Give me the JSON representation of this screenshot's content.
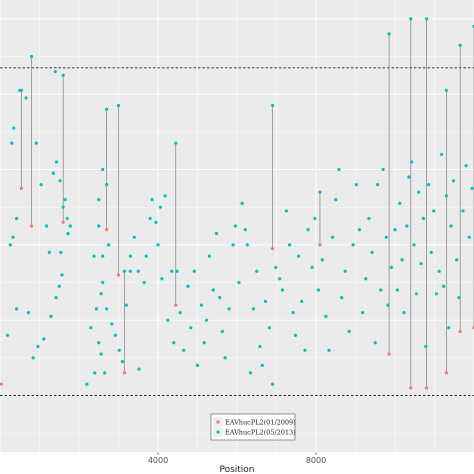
{
  "chart_data": {
    "type": "scatter",
    "xlabel": "Position",
    "ylabel": "",
    "x_ticks": [
      4000,
      8000
    ],
    "x_tick_labels": [
      "4000",
      "8000"
    ],
    "xlim": [
      0,
      12000
    ],
    "ylim": [
      -0.15,
      1.05
    ],
    "reference_lines": [
      0.0,
      0.87
    ],
    "grid": true,
    "legend_position": "bottom",
    "series": [
      {
        "name": "EAVhucPL2(01/2009)",
        "color": "#f8766d",
        "points": [
          [
            30,
            0.03
          ],
          [
            540,
            0.55
          ],
          [
            800,
            0.45
          ],
          [
            1600,
            0.46
          ],
          [
            2700,
            0.44
          ],
          [
            3000,
            0.32
          ],
          [
            3150,
            0.06
          ],
          [
            4450,
            0.24
          ],
          [
            6900,
            0.39
          ],
          [
            8100,
            0.4
          ],
          [
            9850,
            0.11
          ],
          [
            10400,
            0.02
          ],
          [
            10800,
            0.02
          ],
          [
            11300,
            0.06
          ],
          [
            11650,
            0.17
          ],
          [
            12000,
            0.18
          ]
        ]
      },
      {
        "name": "EAVhucPL2(05/2013)",
        "color": "#00bfc4",
        "points": [
          [
            500,
            0.81
          ],
          [
            540,
            0.81
          ],
          [
            660,
            0.79
          ],
          [
            800,
            0.9
          ],
          [
            1400,
            0.86
          ],
          [
            1600,
            0.85
          ],
          [
            2700,
            0.76
          ],
          [
            3000,
            0.77
          ],
          [
            3150,
            0.33
          ],
          [
            4450,
            0.67
          ],
          [
            6900,
            0.77
          ],
          [
            8100,
            0.54
          ],
          [
            9850,
            0.96
          ],
          [
            10400,
            1.0
          ],
          [
            10800,
            1.0
          ],
          [
            11300,
            0.81
          ],
          [
            11650,
            0.93
          ],
          [
            12000,
            0.98
          ],
          [
            260,
            0.4
          ],
          [
            420,
            0.47
          ],
          [
            300,
            0.67
          ],
          [
            350,
            0.71
          ],
          [
            330,
            0.42
          ],
          [
            420,
            0.23
          ],
          [
            190,
            0.16
          ],
          [
            720,
            0.22
          ],
          [
            920,
            0.67
          ],
          [
            1040,
            0.56
          ],
          [
            1180,
            0.45
          ],
          [
            1250,
            0.38
          ],
          [
            1350,
            0.59
          ],
          [
            1430,
            0.62
          ],
          [
            1520,
            0.57
          ],
          [
            1600,
            0.5
          ],
          [
            1650,
            0.52
          ],
          [
            1700,
            0.47
          ],
          [
            1720,
            0.43
          ],
          [
            1780,
            0.45
          ],
          [
            1540,
            0.38
          ],
          [
            1570,
            0.32
          ],
          [
            1500,
            0.29
          ],
          [
            1420,
            0.26
          ],
          [
            1290,
            0.21
          ],
          [
            1110,
            0.15
          ],
          [
            960,
            0.13
          ],
          [
            840,
            0.1
          ],
          [
            2200,
            0.03
          ],
          [
            2400,
            0.06
          ],
          [
            2560,
            0.11
          ],
          [
            2650,
            0.06
          ],
          [
            2500,
            0.14
          ],
          [
            2300,
            0.18
          ],
          [
            2440,
            0.23
          ],
          [
            2560,
            0.27
          ],
          [
            2600,
            0.3
          ],
          [
            2700,
            0.23
          ],
          [
            2830,
            0.19
          ],
          [
            2920,
            0.16
          ],
          [
            3020,
            0.12
          ],
          [
            3100,
            0.09
          ],
          [
            2380,
            0.37
          ],
          [
            2500,
            0.45
          ],
          [
            2600,
            0.37
          ],
          [
            2750,
            0.4
          ],
          [
            2500,
            0.52
          ],
          [
            2700,
            0.56
          ],
          [
            2600,
            0.6
          ],
          [
            3200,
            0.24
          ],
          [
            3300,
            0.33
          ],
          [
            3300,
            0.37
          ],
          [
            3400,
            0.42
          ],
          [
            3500,
            0.33
          ],
          [
            3520,
            0.07
          ],
          [
            3650,
            0.3
          ],
          [
            3700,
            0.37
          ],
          [
            3800,
            0.47
          ],
          [
            3850,
            0.52
          ],
          [
            3950,
            0.46
          ],
          [
            4000,
            0.4
          ],
          [
            4060,
            0.5
          ],
          [
            4100,
            0.31
          ],
          [
            4180,
            0.53
          ],
          [
            4250,
            0.2
          ],
          [
            4350,
            0.33
          ],
          [
            4400,
            0.14
          ],
          [
            4480,
            0.33
          ],
          [
            4560,
            0.22
          ],
          [
            4650,
            0.12
          ],
          [
            4760,
            0.29
          ],
          [
            4830,
            0.18
          ],
          [
            4920,
            0.33
          ],
          [
            5000,
            0.08
          ],
          [
            5100,
            0.24
          ],
          [
            5170,
            0.14
          ],
          [
            5230,
            0.2
          ],
          [
            5300,
            0.37
          ],
          [
            5400,
            0.28
          ],
          [
            5480,
            0.43
          ],
          [
            5560,
            0.26
          ],
          [
            5630,
            0.17
          ],
          [
            5700,
            0.1
          ],
          [
            5800,
            0.23
          ],
          [
            5900,
            0.4
          ],
          [
            5960,
            0.45
          ],
          [
            6050,
            0.3
          ],
          [
            6130,
            0.51
          ],
          [
            6210,
            0.44
          ],
          [
            6260,
            0.4
          ],
          [
            6340,
            0.06
          ],
          [
            6420,
            0.23
          ],
          [
            6500,
            0.33
          ],
          [
            6580,
            0.13
          ],
          [
            6640,
            0.08
          ],
          [
            6720,
            0.25
          ],
          [
            6820,
            0.18
          ],
          [
            6900,
            0.03
          ],
          [
            6980,
            0.34
          ],
          [
            7080,
            0.31
          ],
          [
            7150,
            0.28
          ],
          [
            7250,
            0.49
          ],
          [
            7330,
            0.4
          ],
          [
            7420,
            0.22
          ],
          [
            7480,
            0.16
          ],
          [
            7560,
            0.37
          ],
          [
            7640,
            0.25
          ],
          [
            7720,
            0.12
          ],
          [
            7800,
            0.44
          ],
          [
            7900,
            0.34
          ],
          [
            7970,
            0.47
          ],
          [
            8060,
            0.28
          ],
          [
            8160,
            0.36
          ],
          [
            8250,
            0.21
          ],
          [
            8330,
            0.12
          ],
          [
            8420,
            0.42
          ],
          [
            8500,
            0.52
          ],
          [
            8580,
            0.6
          ],
          [
            8650,
            0.26
          ],
          [
            8740,
            0.33
          ],
          [
            8840,
            0.17
          ],
          [
            8940,
            0.4
          ],
          [
            9020,
            0.56
          ],
          [
            9100,
            0.44
          ],
          [
            9180,
            0.22
          ],
          [
            9260,
            0.31
          ],
          [
            9340,
            0.47
          ],
          [
            9420,
            0.38
          ],
          [
            9500,
            0.14
          ],
          [
            9560,
            0.56
          ],
          [
            9640,
            0.28
          ],
          [
            9700,
            0.6
          ],
          [
            9780,
            0.42
          ],
          [
            9820,
            0.24
          ],
          [
            9910,
            0.34
          ],
          [
            10000,
            0.44
          ],
          [
            10060,
            0.28
          ],
          [
            10120,
            0.51
          ],
          [
            10180,
            0.36
          ],
          [
            10230,
            0.22
          ],
          [
            10300,
            0.45
          ],
          [
            10350,
            0.58
          ],
          [
            10420,
            0.62
          ],
          [
            10480,
            0.4
          ],
          [
            10540,
            0.27
          ],
          [
            10600,
            0.54
          ],
          [
            10660,
            0.35
          ],
          [
            10720,
            0.47
          ],
          [
            10780,
            0.13
          ],
          [
            10850,
            0.56
          ],
          [
            10920,
            0.38
          ],
          [
            10980,
            0.49
          ],
          [
            11050,
            0.27
          ],
          [
            11120,
            0.33
          ],
          [
            11180,
            0.64
          ],
          [
            11230,
            0.29
          ],
          [
            11300,
            0.53
          ],
          [
            11360,
            0.18
          ],
          [
            11420,
            0.45
          ],
          [
            11480,
            0.57
          ],
          [
            11560,
            0.36
          ],
          [
            11620,
            0.26
          ],
          [
            11720,
            0.49
          ],
          [
            11800,
            0.61
          ],
          [
            11880,
            0.42
          ],
          [
            11950,
            0.55
          ]
        ]
      }
    ],
    "segments": [
      [
        30,
        0.03,
        30,
        0.03
      ],
      [
        540,
        0.55,
        540,
        0.81
      ],
      [
        800,
        0.45,
        800,
        0.9
      ],
      [
        1600,
        0.46,
        1600,
        0.85
      ],
      [
        2700,
        0.44,
        2700,
        0.76
      ],
      [
        3000,
        0.32,
        3000,
        0.77
      ],
      [
        3150,
        0.06,
        3150,
        0.33
      ],
      [
        4450,
        0.24,
        4450,
        0.67
      ],
      [
        6900,
        0.39,
        6900,
        0.77
      ],
      [
        8100,
        0.4,
        8100,
        0.54
      ],
      [
        9850,
        0.11,
        9850,
        0.96
      ],
      [
        10400,
        0.02,
        10400,
        1.0
      ],
      [
        10800,
        0.02,
        10800,
        1.0
      ],
      [
        11300,
        0.06,
        11300,
        0.81
      ],
      [
        11650,
        0.17,
        11650,
        0.93
      ],
      [
        12000,
        0.18,
        12000,
        0.98
      ]
    ]
  }
}
